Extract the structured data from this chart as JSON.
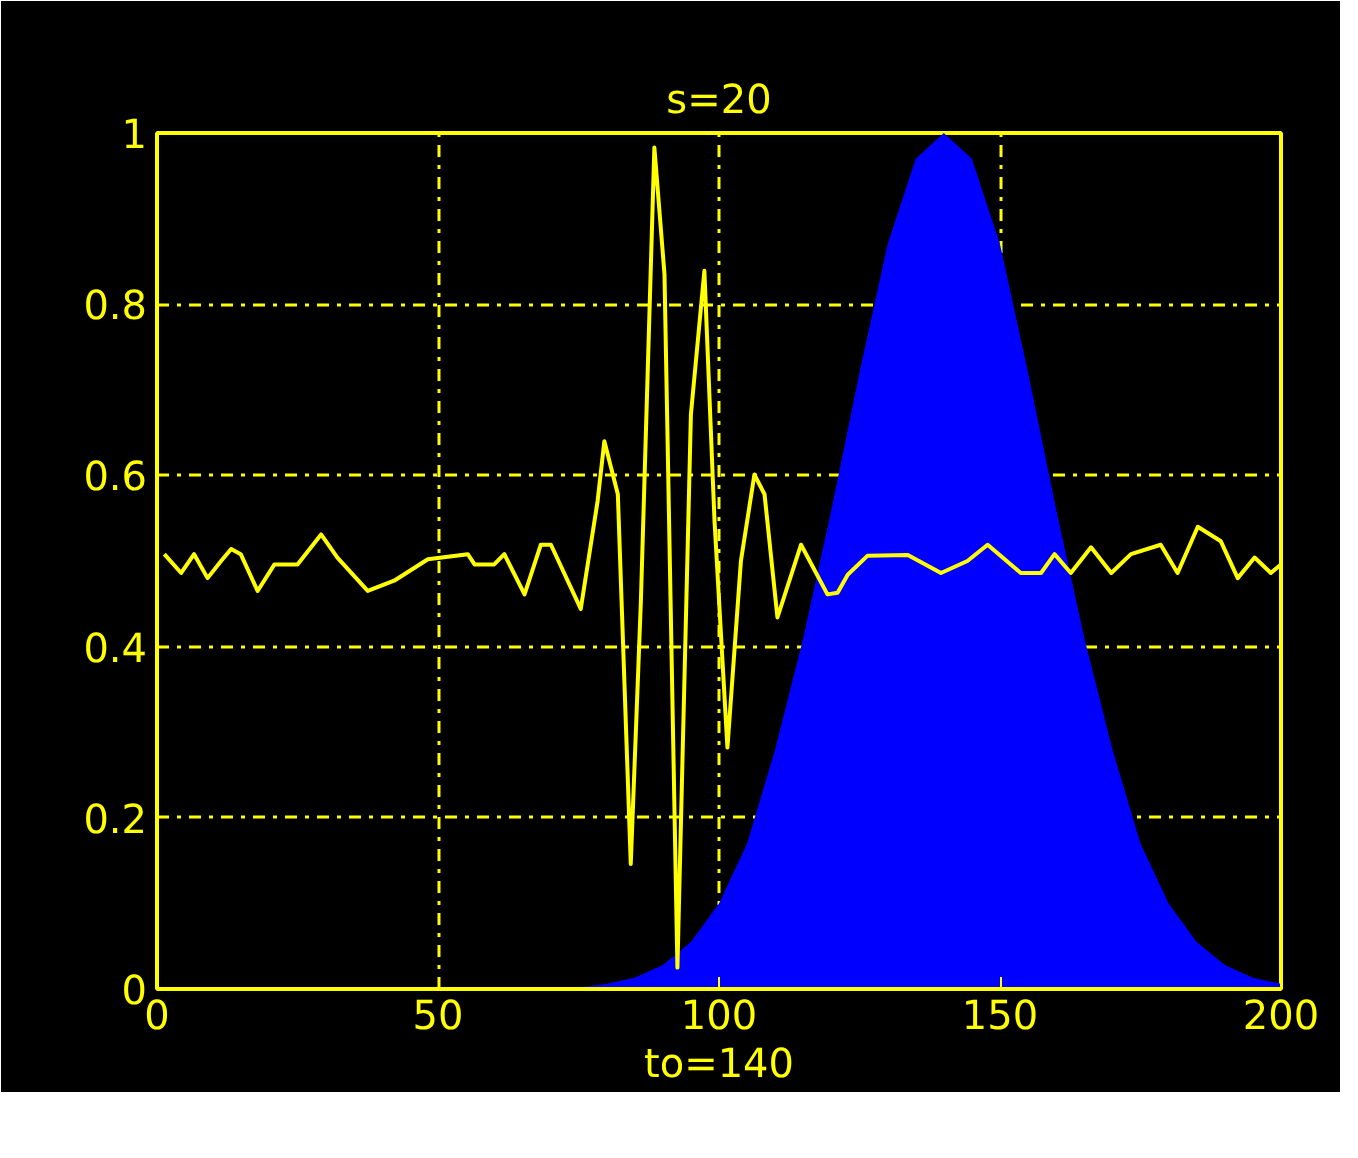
{
  "chart_data": {
    "type": "line",
    "title": "s=20",
    "xlabel": "to=140",
    "xlim": [
      0,
      200
    ],
    "ylim": [
      0,
      1
    ],
    "xticks": [
      0,
      50,
      100,
      150,
      200
    ],
    "yticks": [
      0,
      0.2,
      0.4,
      0.6,
      0.8,
      1
    ],
    "grid": true,
    "series": [
      {
        "type": "area",
        "color": "#0000ff",
        "x": [
          60,
          65,
          70,
          75,
          80,
          85,
          90,
          95,
          100,
          105,
          110,
          115,
          120,
          125,
          130,
          135,
          140,
          145,
          150,
          155,
          160,
          165,
          170,
          175,
          180,
          185,
          190,
          195,
          200
        ],
        "values": [
          0.0,
          0.0,
          0.001,
          0.002,
          0.006,
          0.013,
          0.028,
          0.055,
          0.1,
          0.17,
          0.28,
          0.41,
          0.56,
          0.72,
          0.87,
          0.97,
          1.0,
          0.97,
          0.87,
          0.72,
          0.56,
          0.41,
          0.28,
          0.17,
          0.1,
          0.055,
          0.028,
          0.013,
          0.006
        ]
      },
      {
        "color": "#ffff00",
        "x": [
          1.3,
          4.3,
          6.6,
          9.0,
          11.4,
          13.2,
          14.9,
          17.9,
          20.9,
          25.0,
          29.2,
          32.1,
          37.5,
          42.2,
          48.2,
          55.3,
          56.5,
          60.0,
          61.8,
          65.4,
          68.3,
          70.1,
          75.4,
          78.4,
          79.6,
          82.0,
          84.3,
          86.1,
          88.5,
          90.3,
          92.6,
          95.0,
          97.4,
          99.2,
          101.5,
          103.9,
          106.3,
          108.1,
          110.4,
          114.6,
          119.3,
          121.1,
          122.9,
          126.4,
          133.6,
          139.5,
          144.2,
          147.8,
          153.7,
          157.3,
          159.7,
          162.6,
          166.2,
          169.8,
          173.3,
          178.6,
          181.6,
          185.2,
          189.3,
          192.3,
          195.3,
          198.2,
          200
        ],
        "values": [
          0.508,
          0.486,
          0.508,
          0.48,
          0.5,
          0.514,
          0.508,
          0.465,
          0.496,
          0.496,
          0.531,
          0.504,
          0.465,
          0.477,
          0.502,
          0.508,
          0.496,
          0.496,
          0.508,
          0.461,
          0.519,
          0.519,
          0.444,
          0.57,
          0.64,
          0.578,
          0.146,
          0.453,
          0.983,
          0.835,
          0.025,
          0.671,
          0.839,
          0.547,
          0.282,
          0.5,
          0.601,
          0.578,
          0.434,
          0.519,
          0.461,
          0.463,
          0.484,
          0.506,
          0.507,
          0.486,
          0.5,
          0.519,
          0.486,
          0.486,
          0.508,
          0.486,
          0.516,
          0.486,
          0.508,
          0.519,
          0.486,
          0.54,
          0.523,
          0.48,
          0.504,
          0.486,
          0.496
        ]
      }
    ]
  }
}
